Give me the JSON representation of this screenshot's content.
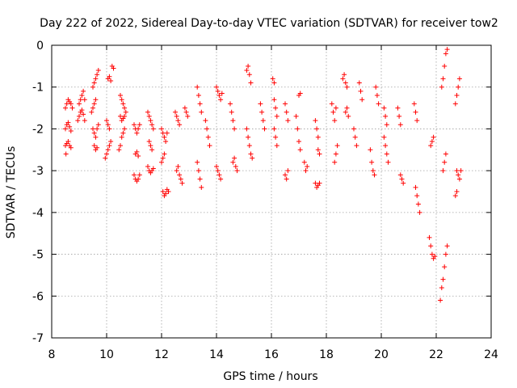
{
  "chart_data": {
    "type": "scatter",
    "title": "Day 222 of 2022, Sidereal Day-to-day VTEC variation (SDTVAR) for receiver tow2",
    "xlabel": "GPS time / hours",
    "ylabel": "SDTVAR / TECUs",
    "xlim": [
      8,
      24
    ],
    "ylim": [
      -7,
      0
    ],
    "xticks": [
      8,
      10,
      12,
      14,
      16,
      18,
      20,
      22,
      24
    ],
    "yticks": [
      0,
      -1,
      -2,
      -3,
      -4,
      -5,
      -6,
      -7
    ],
    "grid": true,
    "marker": "plus",
    "color": "#ff0000",
    "series": [
      {
        "name": "SDTVAR",
        "points": [
          [
            8.5,
            -1.5
          ],
          [
            8.55,
            -1.4
          ],
          [
            8.6,
            -1.3
          ],
          [
            8.65,
            -1.35
          ],
          [
            8.7,
            -1.4
          ],
          [
            8.75,
            -1.5
          ],
          [
            8.5,
            -2.0
          ],
          [
            8.55,
            -1.9
          ],
          [
            8.6,
            -1.85
          ],
          [
            8.65,
            -1.95
          ],
          [
            8.7,
            -2.05
          ],
          [
            8.5,
            -2.4
          ],
          [
            8.55,
            -2.35
          ],
          [
            8.6,
            -2.3
          ],
          [
            8.65,
            -2.4
          ],
          [
            8.7,
            -2.45
          ],
          [
            8.52,
            -2.6
          ],
          [
            9.0,
            -1.4
          ],
          [
            9.05,
            -1.3
          ],
          [
            9.1,
            -1.2
          ],
          [
            9.15,
            -1.1
          ],
          [
            9.2,
            -1.3
          ],
          [
            8.95,
            -1.8
          ],
          [
            9.0,
            -1.7
          ],
          [
            9.05,
            -1.6
          ],
          [
            9.1,
            -1.55
          ],
          [
            9.15,
            -1.65
          ],
          [
            9.2,
            -1.8
          ],
          [
            9.5,
            -1.0
          ],
          [
            9.55,
            -0.9
          ],
          [
            9.6,
            -0.8
          ],
          [
            9.65,
            -0.7
          ],
          [
            9.7,
            -0.6
          ],
          [
            9.45,
            -1.6
          ],
          [
            9.5,
            -1.5
          ],
          [
            9.55,
            -1.4
          ],
          [
            9.6,
            -1.3
          ],
          [
            9.5,
            -2.0
          ],
          [
            9.55,
            -2.1
          ],
          [
            9.6,
            -2.2
          ],
          [
            9.65,
            -2.0
          ],
          [
            9.7,
            -1.9
          ],
          [
            9.55,
            -2.4
          ],
          [
            9.6,
            -2.5
          ],
          [
            9.65,
            -2.45
          ],
          [
            10.05,
            -0.8
          ],
          [
            10.1,
            -0.75
          ],
          [
            10.15,
            -0.85
          ],
          [
            10.2,
            -0.5
          ],
          [
            10.25,
            -0.55
          ],
          [
            9.95,
            -2.7
          ],
          [
            10.0,
            -2.6
          ],
          [
            10.05,
            -2.5
          ],
          [
            10.1,
            -2.4
          ],
          [
            10.15,
            -2.3
          ],
          [
            10.0,
            -1.8
          ],
          [
            10.05,
            -1.9
          ],
          [
            10.1,
            -2.0
          ],
          [
            10.5,
            -1.2
          ],
          [
            10.55,
            -1.3
          ],
          [
            10.6,
            -1.4
          ],
          [
            10.65,
            -1.5
          ],
          [
            10.7,
            -1.6
          ],
          [
            10.45,
            -2.5
          ],
          [
            10.5,
            -2.4
          ],
          [
            10.55,
            -2.2
          ],
          [
            10.6,
            -2.1
          ],
          [
            10.65,
            -2.0
          ],
          [
            10.5,
            -1.7
          ],
          [
            10.55,
            -1.8
          ],
          [
            10.6,
            -1.75
          ],
          [
            10.65,
            -1.7
          ],
          [
            11.0,
            -1.9
          ],
          [
            11.05,
            -2.0
          ],
          [
            11.1,
            -2.1
          ],
          [
            11.15,
            -2.0
          ],
          [
            11.2,
            -1.9
          ],
          [
            11.0,
            -3.1
          ],
          [
            11.05,
            -3.2
          ],
          [
            11.1,
            -3.25
          ],
          [
            11.15,
            -3.2
          ],
          [
            11.2,
            -3.1
          ],
          [
            11.05,
            -2.6
          ],
          [
            11.1,
            -2.55
          ],
          [
            11.15,
            -2.65
          ],
          [
            11.5,
            -1.6
          ],
          [
            11.55,
            -1.7
          ],
          [
            11.6,
            -1.8
          ],
          [
            11.65,
            -1.9
          ],
          [
            11.7,
            -2.0
          ],
          [
            11.5,
            -2.9
          ],
          [
            11.55,
            -3.0
          ],
          [
            11.6,
            -3.05
          ],
          [
            11.65,
            -3.0
          ],
          [
            11.7,
            -2.95
          ],
          [
            11.55,
            -2.3
          ],
          [
            11.6,
            -2.4
          ],
          [
            11.65,
            -2.5
          ],
          [
            12.0,
            -2.0
          ],
          [
            12.05,
            -2.1
          ],
          [
            12.1,
            -2.2
          ],
          [
            12.15,
            -2.3
          ],
          [
            12.2,
            -2.1
          ],
          [
            12.05,
            -3.5
          ],
          [
            12.1,
            -3.6
          ],
          [
            12.15,
            -3.55
          ],
          [
            12.2,
            -3.45
          ],
          [
            12.25,
            -3.5
          ],
          [
            12.0,
            -2.8
          ],
          [
            12.05,
            -2.7
          ],
          [
            12.1,
            -2.6
          ],
          [
            12.5,
            -1.6
          ],
          [
            12.55,
            -1.7
          ],
          [
            12.6,
            -1.8
          ],
          [
            12.65,
            -1.9
          ],
          [
            12.55,
            -3.0
          ],
          [
            12.6,
            -2.9
          ],
          [
            12.65,
            -3.1
          ],
          [
            12.7,
            -3.2
          ],
          [
            12.75,
            -3.3
          ],
          [
            12.85,
            -1.5
          ],
          [
            12.9,
            -1.6
          ],
          [
            12.95,
            -1.7
          ],
          [
            13.3,
            -1.0
          ],
          [
            13.35,
            -1.2
          ],
          [
            13.4,
            -1.4
          ],
          [
            13.45,
            -1.6
          ],
          [
            13.3,
            -2.8
          ],
          [
            13.35,
            -3.0
          ],
          [
            13.4,
            -3.2
          ],
          [
            13.45,
            -3.4
          ],
          [
            13.6,
            -1.8
          ],
          [
            13.65,
            -2.0
          ],
          [
            13.7,
            -2.2
          ],
          [
            13.75,
            -2.4
          ],
          [
            14.0,
            -1.0
          ],
          [
            14.05,
            -1.1
          ],
          [
            14.1,
            -1.2
          ],
          [
            14.15,
            -1.3
          ],
          [
            14.2,
            -1.15
          ],
          [
            14.0,
            -2.9
          ],
          [
            14.05,
            -3.0
          ],
          [
            14.1,
            -3.1
          ],
          [
            14.15,
            -3.2
          ],
          [
            14.5,
            -1.4
          ],
          [
            14.55,
            -1.6
          ],
          [
            14.6,
            -1.8
          ],
          [
            14.65,
            -2.0
          ],
          [
            14.6,
            -2.8
          ],
          [
            14.65,
            -2.7
          ],
          [
            14.7,
            -2.9
          ],
          [
            14.75,
            -3.0
          ],
          [
            15.1,
            -0.6
          ],
          [
            15.15,
            -0.5
          ],
          [
            15.2,
            -0.7
          ],
          [
            15.25,
            -0.9
          ],
          [
            15.1,
            -2.0
          ],
          [
            15.15,
            -2.2
          ],
          [
            15.2,
            -2.4
          ],
          [
            15.25,
            -2.6
          ],
          [
            15.3,
            -2.7
          ],
          [
            15.6,
            -1.4
          ],
          [
            15.65,
            -1.6
          ],
          [
            15.7,
            -1.8
          ],
          [
            15.75,
            -2.0
          ],
          [
            16.05,
            -0.8
          ],
          [
            16.1,
            -0.9
          ],
          [
            16.1,
            -1.3
          ],
          [
            16.15,
            -1.5
          ],
          [
            16.2,
            -1.7
          ],
          [
            16.1,
            -2.0
          ],
          [
            16.15,
            -2.2
          ],
          [
            16.2,
            -2.4
          ],
          [
            16.5,
            -1.4
          ],
          [
            16.55,
            -1.6
          ],
          [
            16.6,
            -1.8
          ],
          [
            16.5,
            -3.1
          ],
          [
            16.55,
            -3.2
          ],
          [
            16.6,
            -3.0
          ],
          [
            16.9,
            -1.7
          ],
          [
            16.95,
            -2.0
          ],
          [
            17.0,
            -2.3
          ],
          [
            17.05,
            -2.5
          ],
          [
            17.0,
            -1.2
          ],
          [
            17.05,
            -1.15
          ],
          [
            17.2,
            -2.8
          ],
          [
            17.25,
            -3.0
          ],
          [
            17.3,
            -2.9
          ],
          [
            17.6,
            -1.8
          ],
          [
            17.65,
            -2.0
          ],
          [
            17.7,
            -2.2
          ],
          [
            17.6,
            -3.3
          ],
          [
            17.65,
            -3.4
          ],
          [
            17.7,
            -3.35
          ],
          [
            17.75,
            -3.3
          ],
          [
            17.7,
            -2.5
          ],
          [
            17.75,
            -2.6
          ],
          [
            18.2,
            -1.4
          ],
          [
            18.25,
            -1.6
          ],
          [
            18.3,
            -1.8
          ],
          [
            18.35,
            -1.5
          ],
          [
            18.3,
            -2.8
          ],
          [
            18.35,
            -2.6
          ],
          [
            18.4,
            -2.4
          ],
          [
            18.6,
            -0.8
          ],
          [
            18.65,
            -0.7
          ],
          [
            18.7,
            -0.9
          ],
          [
            18.75,
            -1.0
          ],
          [
            18.7,
            -1.6
          ],
          [
            18.75,
            -1.5
          ],
          [
            18.8,
            -1.7
          ],
          [
            19.0,
            -2.0
          ],
          [
            19.05,
            -2.2
          ],
          [
            19.1,
            -2.4
          ],
          [
            19.2,
            -0.9
          ],
          [
            19.25,
            -1.1
          ],
          [
            19.3,
            -1.3
          ],
          [
            19.6,
            -2.5
          ],
          [
            19.65,
            -2.8
          ],
          [
            19.7,
            -3.0
          ],
          [
            19.75,
            -3.1
          ],
          [
            19.8,
            -1.0
          ],
          [
            19.85,
            -1.2
          ],
          [
            19.9,
            -1.4
          ],
          [
            20.1,
            -2.2
          ],
          [
            20.15,
            -2.4
          ],
          [
            20.2,
            -2.6
          ],
          [
            20.25,
            -2.8
          ],
          [
            20.1,
            -1.5
          ],
          [
            20.15,
            -1.7
          ],
          [
            20.2,
            -1.9
          ],
          [
            20.6,
            -1.5
          ],
          [
            20.65,
            -1.7
          ],
          [
            20.7,
            -1.9
          ],
          [
            20.7,
            -3.1
          ],
          [
            20.75,
            -3.2
          ],
          [
            20.8,
            -3.3
          ],
          [
            21.2,
            -1.4
          ],
          [
            21.25,
            -1.6
          ],
          [
            21.3,
            -1.8
          ],
          [
            21.25,
            -3.4
          ],
          [
            21.3,
            -3.6
          ],
          [
            21.35,
            -3.8
          ],
          [
            21.4,
            -4.0
          ],
          [
            21.8,
            -2.4
          ],
          [
            21.85,
            -2.3
          ],
          [
            21.9,
            -2.2
          ],
          [
            21.75,
            -4.6
          ],
          [
            21.8,
            -4.8
          ],
          [
            21.85,
            -5.0
          ],
          [
            21.9,
            -5.1
          ],
          [
            21.95,
            -5.05
          ],
          [
            22.2,
            -1.0
          ],
          [
            22.25,
            -0.8
          ],
          [
            22.3,
            -0.5
          ],
          [
            22.35,
            -0.2
          ],
          [
            22.4,
            -0.1
          ],
          [
            22.2,
            -5.8
          ],
          [
            22.25,
            -5.6
          ],
          [
            22.3,
            -5.3
          ],
          [
            22.35,
            -5.0
          ],
          [
            22.4,
            -4.8
          ],
          [
            22.15,
            -6.1
          ],
          [
            22.25,
            -3.0
          ],
          [
            22.3,
            -2.8
          ],
          [
            22.35,
            -2.6
          ],
          [
            22.7,
            -1.4
          ],
          [
            22.75,
            -1.2
          ],
          [
            22.8,
            -1.0
          ],
          [
            22.85,
            -0.8
          ],
          [
            22.75,
            -3.0
          ],
          [
            22.8,
            -3.1
          ],
          [
            22.85,
            -3.2
          ],
          [
            22.9,
            -3.0
          ],
          [
            22.7,
            -3.6
          ],
          [
            22.75,
            -3.5
          ]
        ]
      }
    ]
  }
}
